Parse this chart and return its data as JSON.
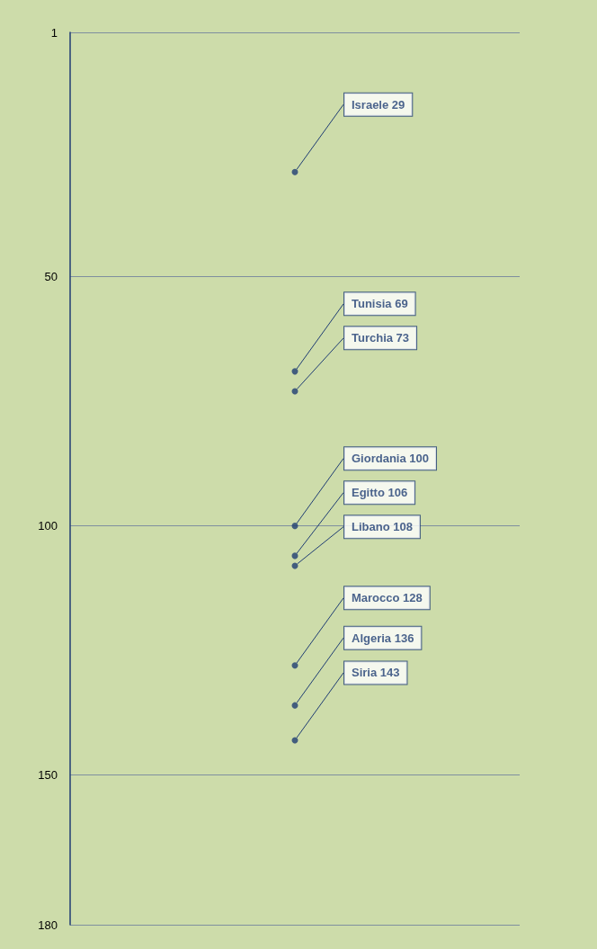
{
  "chart_data": {
    "type": "scatter",
    "categories": [
      null
    ],
    "series": [
      {
        "color": "#1f3d73",
        "values": [
          29
        ],
        "value_labels": [
          "Israele 29"
        ]
      },
      {
        "color": "#1f3d73",
        "values": [
          69
        ],
        "value_labels": [
          "Tunisia 69"
        ]
      },
      {
        "color": "#1f3d73",
        "values": [
          73
        ],
        "value_labels": [
          "Turchia 73"
        ]
      },
      {
        "color": "#1f3d73",
        "values": [
          100
        ],
        "value_labels": [
          "Giordania 100"
        ]
      },
      {
        "color": "#1f3d73",
        "values": [
          106
        ],
        "value_labels": [
          "Egitto 106"
        ]
      },
      {
        "color": "#1f3d73",
        "values": [
          108
        ],
        "value_labels": [
          "Libano 108"
        ]
      },
      {
        "color": "#1f3d73",
        "values": [
          128
        ],
        "value_labels": [
          "Marocco 128"
        ]
      },
      {
        "color": "#1f3d73",
        "values": [
          136
        ],
        "value_labels": [
          "Algeria 136"
        ]
      },
      {
        "color": "#1f3d73",
        "values": [
          143
        ],
        "value_labels": [
          "Siria 143"
        ]
      }
    ],
    "marker": "circle",
    "ylim": [
      180,
      1
    ],
    "yticks": [
      1,
      50,
      100,
      150,
      180
    ],
    "grid": "y",
    "tick_labels": "y"
  }
}
